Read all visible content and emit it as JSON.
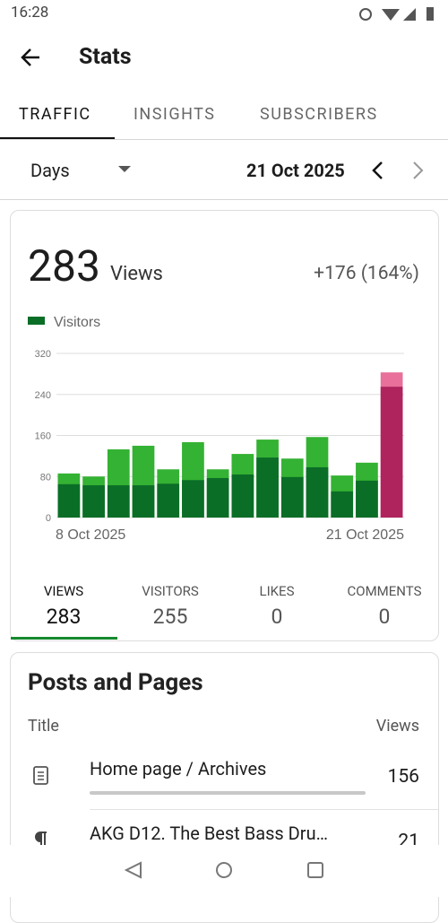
{
  "status_bar": {
    "time": "16:28"
  },
  "header": {
    "title": "Stats"
  },
  "tabs": [
    "TRAFFIC",
    "INSIGHTS",
    "SUBSCRIBERS"
  ],
  "period": {
    "unit": "Days",
    "date": "21 Oct 2025"
  },
  "summary": {
    "value": 283,
    "label": "Views",
    "change": "+176 (164%)"
  },
  "chart_data": {
    "type": "bar",
    "categories": [
      "8 Oct 2025",
      null,
      null,
      null,
      null,
      null,
      null,
      null,
      null,
      null,
      null,
      null,
      null,
      "21 Oct 2025"
    ],
    "series": [
      {
        "color": "#34b233",
        "highlight_color": "#e8709b",
        "values": [
          86,
          80,
          133,
          140,
          94,
          147,
          94,
          124,
          152,
          115,
          157,
          82,
          107,
          283
        ]
      },
      {
        "name": "Visitors",
        "color": "#0b6e27",
        "highlight_color": "#b0245e",
        "values": [
          65,
          63,
          63,
          63,
          66,
          73,
          77,
          84,
          117,
          79,
          98,
          51,
          72,
          255
        ]
      }
    ],
    "highlight_last": true,
    "ylim": [
      0,
      320
    ],
    "yticks": [
      0,
      80,
      160,
      240,
      320
    ],
    "grid": true
  },
  "stat_tabs": [
    {
      "label": "VIEWS",
      "value": 283
    },
    {
      "label": "VISITORS",
      "value": 255
    },
    {
      "label": "LIKES",
      "value": 0
    },
    {
      "label": "COMMENTS",
      "value": 0
    }
  ],
  "posts": {
    "title": "Posts and Pages",
    "columns": [
      "Title",
      "Views"
    ],
    "rows": [
      {
        "title": "Home page / Archives",
        "views": 156
      },
      {
        "title": "AKG D12. The Best Bass Dru…",
        "views": 21
      }
    ]
  }
}
